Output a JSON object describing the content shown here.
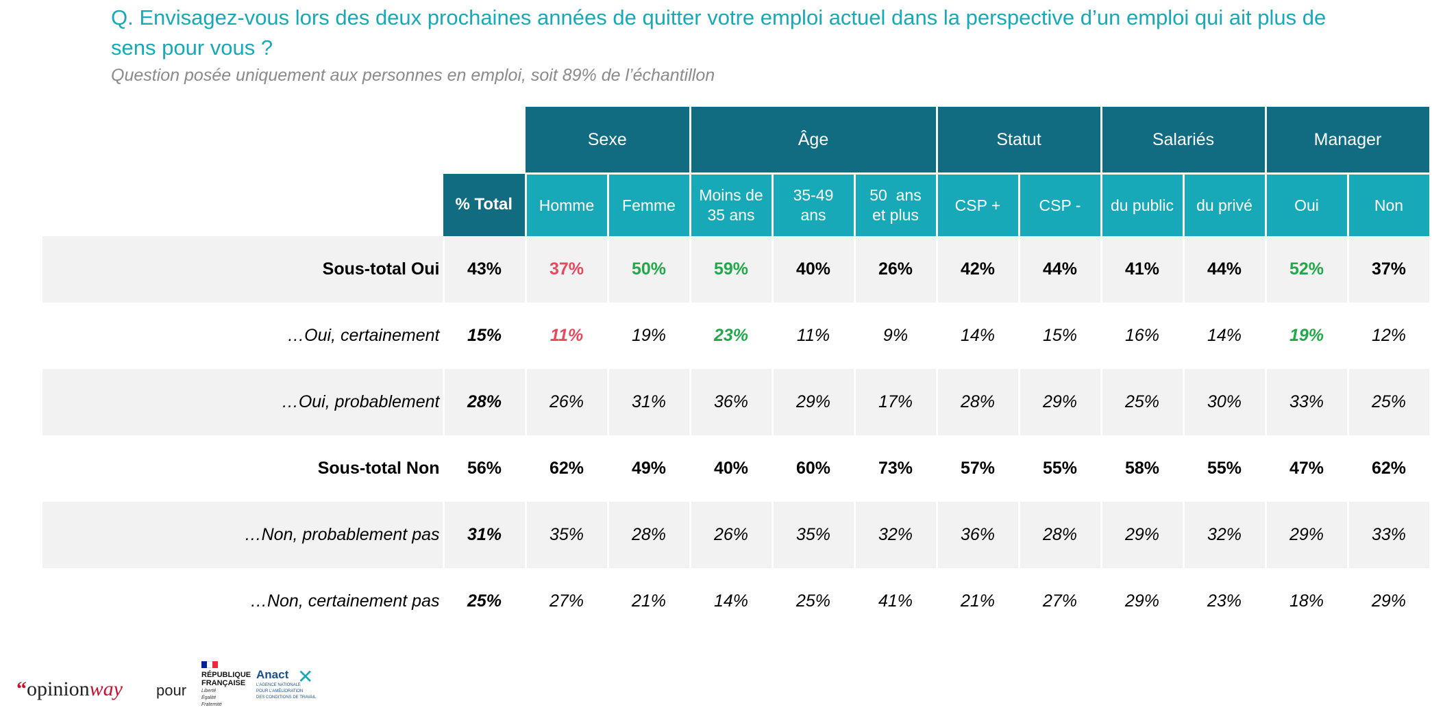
{
  "title": "Q. Envisagez-vous lors des deux prochaines années de quitter votre emploi actuel dans la perspective d’un emploi qui ait plus de sens pour vous ?",
  "subtitle": "Question posée uniquement aux personnes en emploi, soit 89% de l’échantillon",
  "groups": [
    "Sexe",
    "Âge",
    "Statut",
    "Salariés",
    "Manager"
  ],
  "total_header": "% Total",
  "columns": [
    "Homme",
    "Femme",
    "Moins de",
    "35 ans",
    "35-49",
    "ans",
    "50  ans",
    "et plus",
    "CSP +",
    "CSP -",
    "du public",
    "du privé",
    "Oui",
    "Non"
  ],
  "rows": [
    {
      "label": "Sous-total Oui",
      "total": "43%",
      "values": [
        "37%",
        "50%",
        "59%",
        "40%",
        "26%",
        "42%",
        "44%",
        "41%",
        "44%",
        "52%",
        "37%"
      ]
    },
    {
      "label": "…Oui, certainement",
      "total": "15%",
      "values": [
        "11%",
        "19%",
        "23%",
        "11%",
        "9%",
        "14%",
        "15%",
        "16%",
        "14%",
        "19%",
        "12%"
      ]
    },
    {
      "label": "…Oui, probablement",
      "total": "28%",
      "values": [
        "26%",
        "31%",
        "36%",
        "29%",
        "17%",
        "28%",
        "29%",
        "25%",
        "30%",
        "33%",
        "25%"
      ]
    },
    {
      "label": "Sous-total Non",
      "total": "56%",
      "values": [
        "62%",
        "49%",
        "40%",
        "60%",
        "73%",
        "57%",
        "55%",
        "58%",
        "55%",
        "47%",
        "62%"
      ]
    },
    {
      "label": "…Non, probablement pas",
      "total": "31%",
      "values": [
        "35%",
        "28%",
        "26%",
        "35%",
        "32%",
        "36%",
        "28%",
        "29%",
        "32%",
        "29%",
        "33%"
      ]
    },
    {
      "label": "…Non, certainement pas",
      "total": "25%",
      "values": [
        "27%",
        "21%",
        "14%",
        "25%",
        "41%",
        "21%",
        "27%",
        "29%",
        "23%",
        "18%",
        "29%"
      ]
    }
  ],
  "colors": {
    "red": "#e6495c",
    "green": "#22a84a",
    "header_dark": "#116c82",
    "header_light": "#17a9b7"
  },
  "footer": {
    "brand_mark": "“",
    "brand_a": "opinion",
    "brand_b": "way",
    "pour": "pour",
    "rf_line1": "RÉPUBLIQUE",
    "rf_line2": "FRANÇAISE",
    "rf_motto1": "Liberté",
    "rf_motto2": "Égalité",
    "rf_motto3": "Fraternité",
    "anact_name": "Anact",
    "anact_sub1": "L’AGENCE NATIONALE",
    "anact_sub2": "POUR L’AMÉLIORATION",
    "anact_sub3": "DES CONDITIONS DE TRAVAIL"
  }
}
